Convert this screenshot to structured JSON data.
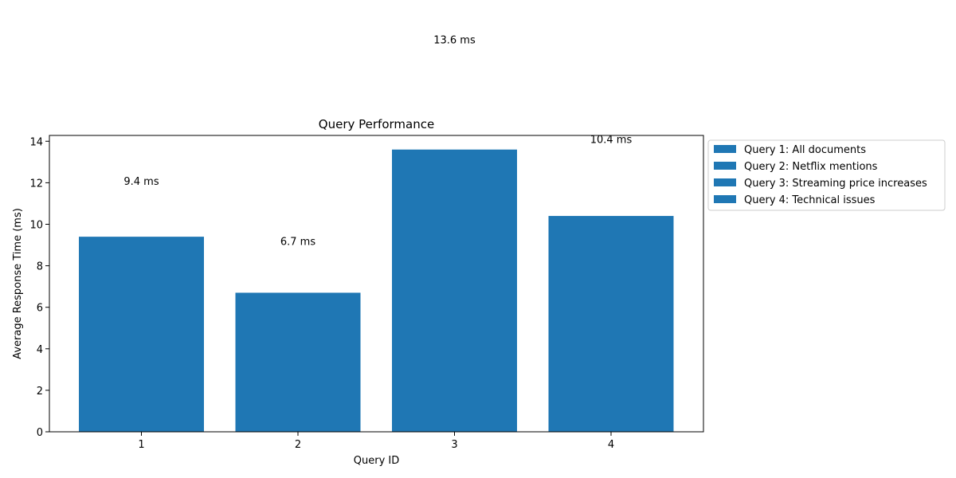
{
  "chart_data": {
    "type": "bar",
    "title": "Query Performance",
    "xlabel": "Query ID",
    "ylabel": "Average Response Time (ms)",
    "categories": [
      "1",
      "2",
      "3",
      "4"
    ],
    "values": [
      9.4,
      6.7,
      13.6,
      10.4
    ],
    "value_labels": [
      "9.4 ms",
      "6.7 ms",
      "13.6 ms",
      "10.4 ms"
    ],
    "yticks": [
      "0",
      "2",
      "4",
      "6",
      "8",
      "10",
      "12",
      "14"
    ],
    "ylim": [
      0,
      14.28
    ],
    "grid": false,
    "legend": {
      "placement": "outside-right-top",
      "entries": [
        "Query 1: All documents",
        "Query 2: Netflix mentions",
        "Query 3: Streaming price increases",
        "Query 4: Technical issues"
      ]
    },
    "colors": {
      "bar": "#1f77b4"
    }
  }
}
